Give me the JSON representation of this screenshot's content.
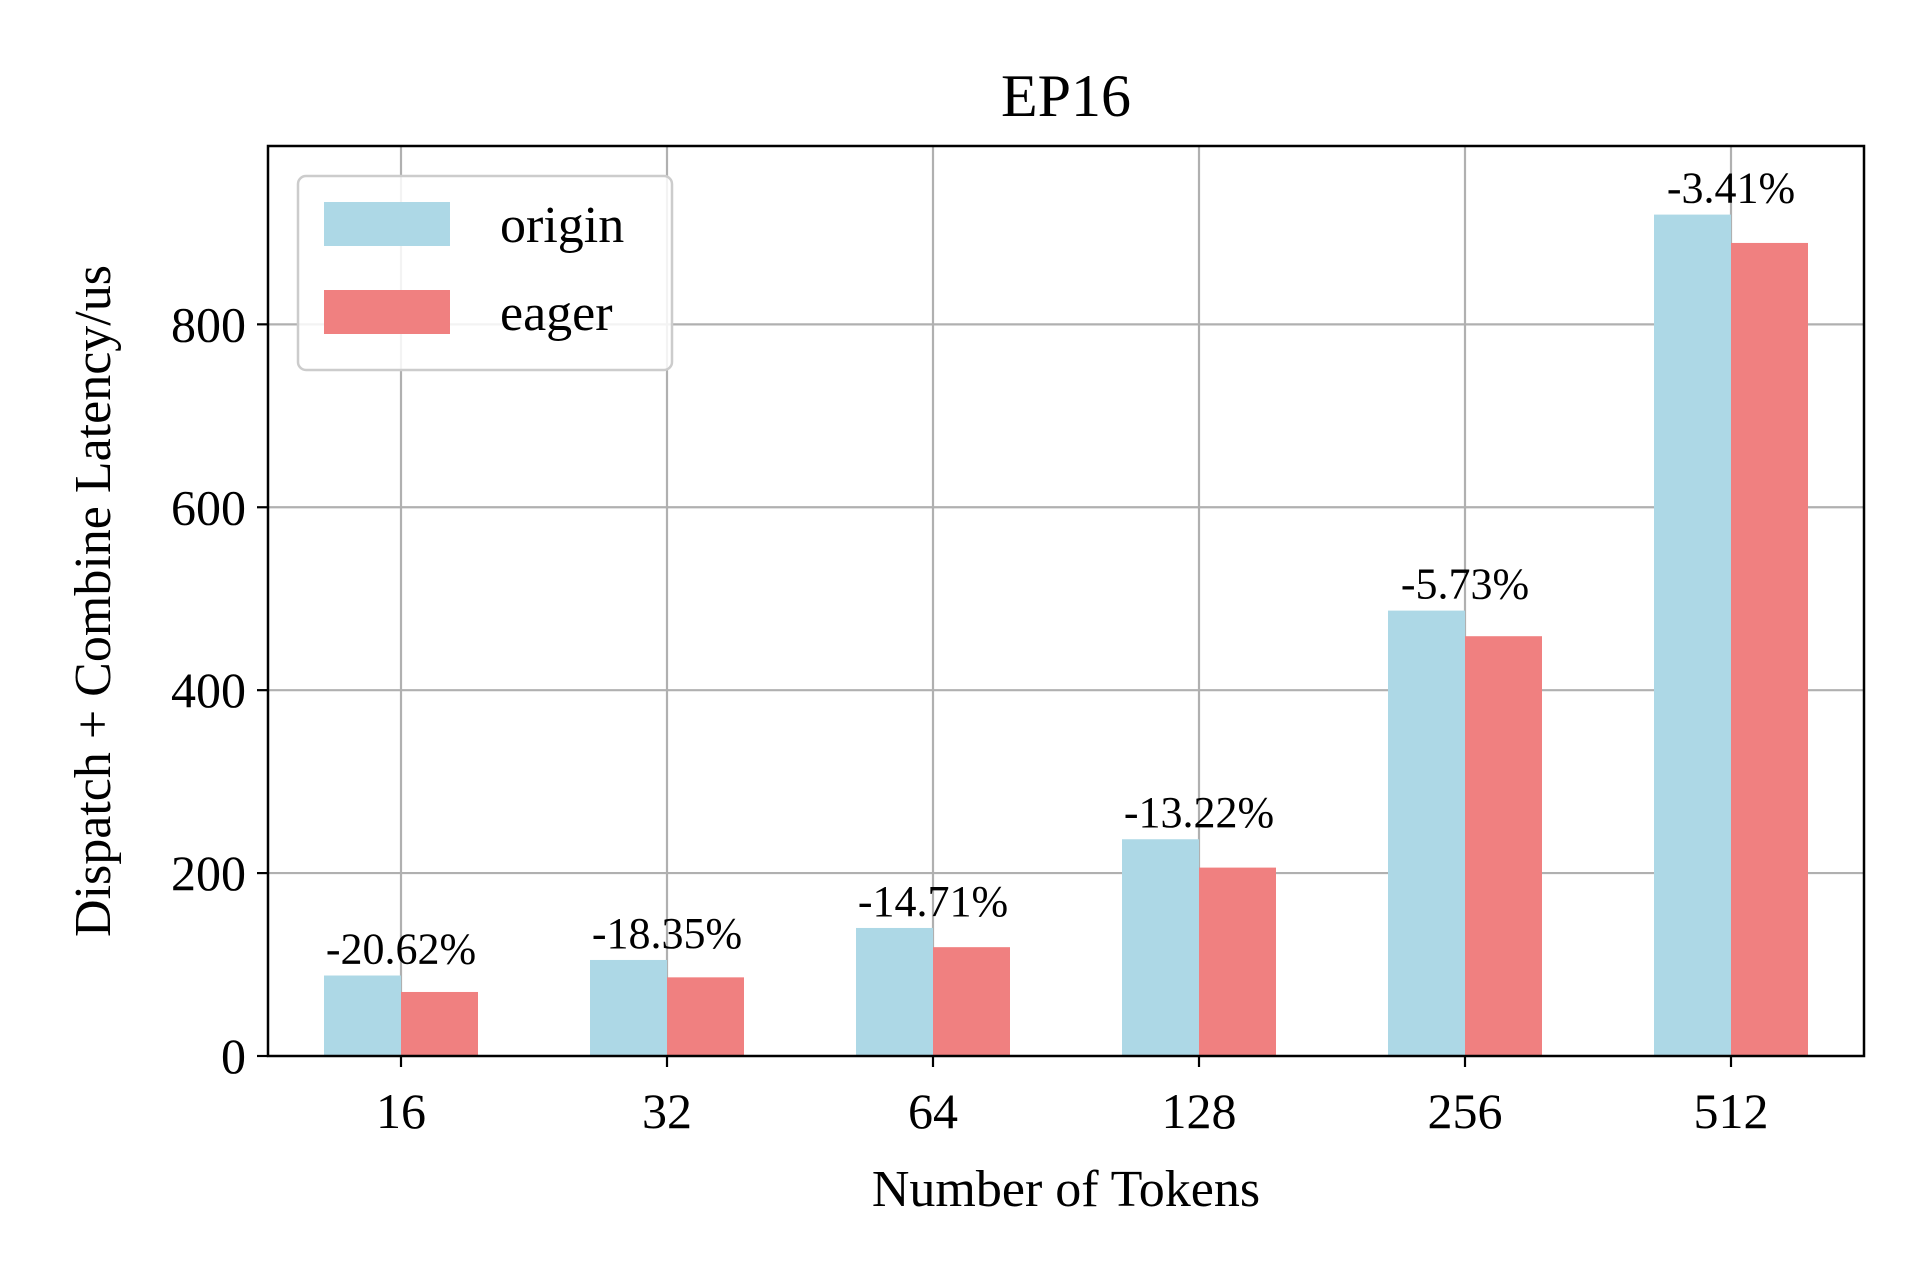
{
  "chart_data": {
    "type": "bar",
    "title": "EP16",
    "xlabel": "Number of Tokens",
    "ylabel": "Dispatch + Combine Latency/us",
    "categories": [
      "16",
      "32",
      "64",
      "128",
      "256",
      "512"
    ],
    "series": [
      {
        "name": "origin",
        "color": "#add8e6",
        "values": [
          88,
          105,
          140,
          237,
          487,
          920
        ]
      },
      {
        "name": "eager",
        "color": "#f08080",
        "values": [
          70,
          86,
          119,
          206,
          459,
          889
        ]
      }
    ],
    "annotations": [
      "-20.62%",
      "-18.35%",
      "-14.71%",
      "-13.22%",
      "-5.73%",
      "-3.41%"
    ],
    "yticks": [
      0,
      200,
      400,
      600,
      800
    ],
    "ylim": [
      0,
      995
    ],
    "grid": true,
    "legend_position": "upper-left"
  }
}
